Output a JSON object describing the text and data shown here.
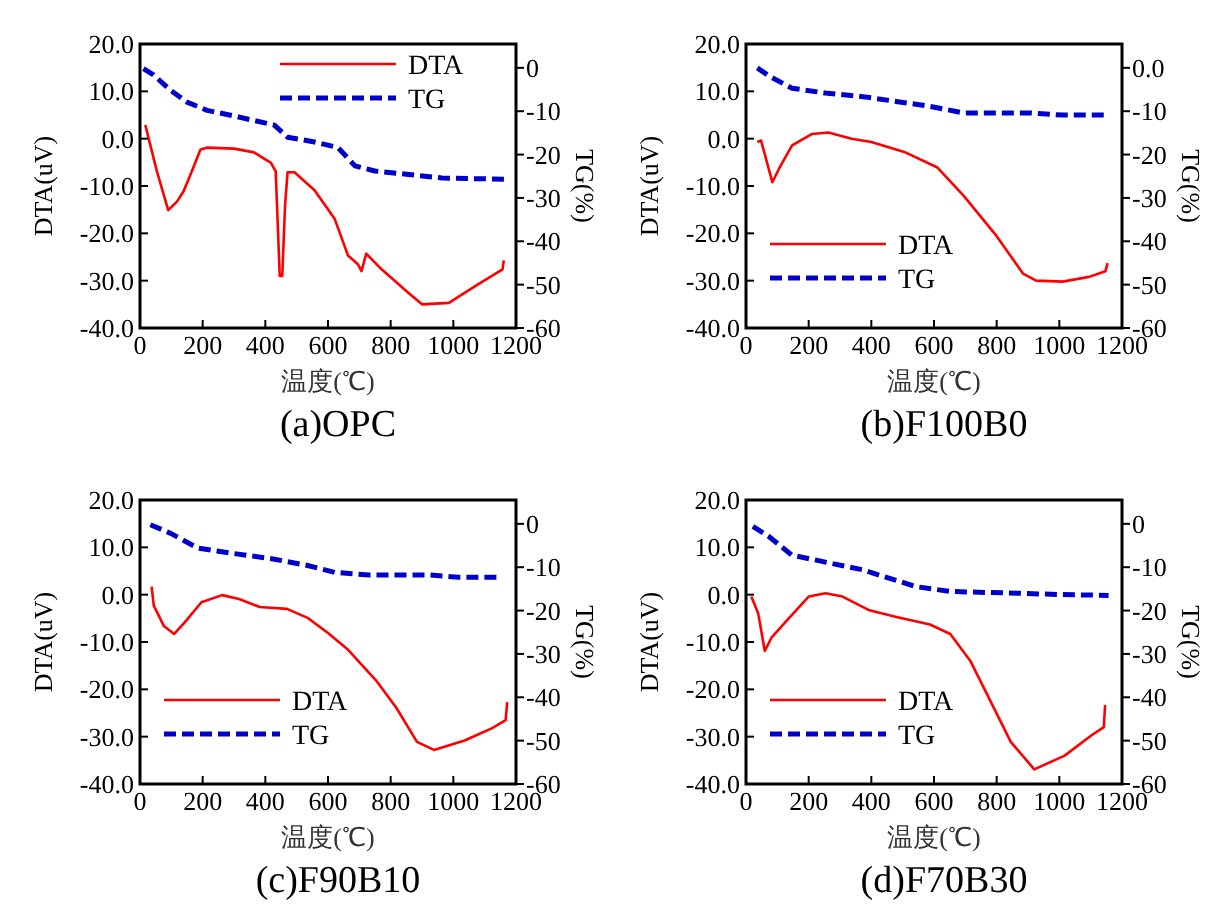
{
  "chart_data": [
    {
      "type": "line",
      "title": "(a)OPC",
      "xlabel": "温度(℃)",
      "ylabel": "DTA(uV)",
      "y2label": "TG(%)",
      "xlim": [
        0,
        1200
      ],
      "xticks": [
        0,
        200,
        400,
        600,
        800,
        1000,
        1200
      ],
      "ylim": [
        -40,
        20
      ],
      "yticks": [
        {
          "value": -40,
          "label": "-40.0"
        },
        {
          "value": -30,
          "label": "-30.0"
        },
        {
          "value": -20,
          "label": "-20.0"
        },
        {
          "value": -10,
          "label": "-10.0"
        },
        {
          "value": 0,
          "label": "0.0"
        },
        {
          "value": 10,
          "label": "10.0"
        },
        {
          "value": 20,
          "label": "20.0"
        }
      ],
      "y2lim": [
        -60,
        5.5
      ],
      "y2ticks": [
        -60,
        -50,
        -40,
        -30,
        -20,
        -10,
        0
      ],
      "legend": "top right",
      "grid": false,
      "series": [
        {
          "name": "DTA",
          "color": "#ff0000",
          "line_style": "solid",
          "x": [
            17,
            32,
            54,
            90,
            118,
            139,
            161,
            193,
            214,
            300,
            364,
            418,
            433,
            446,
            454,
            463,
            471,
            493,
            557,
            621,
            664,
            696,
            707,
            722,
            771,
            857,
            900,
            986,
            1071,
            1157,
            1161
          ],
          "values": [
            2.9,
            -1.1,
            -6.9,
            -15.1,
            -13.3,
            -11.1,
            -7.6,
            -2.3,
            -1.9,
            -2.1,
            -2.9,
            -5.1,
            -6.9,
            -29,
            -29,
            -14,
            -7.1,
            -7.1,
            -10.9,
            -16.9,
            -24.7,
            -26.6,
            -28,
            -24.3,
            -27.6,
            -32.6,
            -35,
            -34.7,
            -31.1,
            -27.6,
            -25.7
          ]
        },
        {
          "name": "TG",
          "color": "#0000cc",
          "line_style": "dashed",
          "axis": "y2",
          "x": [
            11,
            43,
            96,
            150,
            214,
            300,
            429,
            471,
            557,
            632,
            686,
            750,
            857,
            964,
            1168
          ],
          "values": [
            -0.2,
            -1.6,
            -5.1,
            -7.9,
            -9.8,
            -11.1,
            -13.2,
            -16,
            -17.1,
            -18.4,
            -22.6,
            -23.8,
            -24.6,
            -25.4,
            -25.7
          ]
        }
      ]
    },
    {
      "type": "line",
      "title": "(b)F100B0",
      "xlabel": "温度(℃)",
      "ylabel": "DTA(uV)",
      "y2label": "TG(%)",
      "xlim": [
        0,
        1200
      ],
      "xticks": [
        0,
        200,
        400,
        600,
        800,
        1000,
        1200
      ],
      "ylim": [
        -40,
        20
      ],
      "yticks": [
        {
          "value": -40,
          "label": "-40.0"
        },
        {
          "value": -30,
          "label": "-30.0"
        },
        {
          "value": -20,
          "label": "-20.0"
        },
        {
          "value": -10,
          "label": "-10.0"
        },
        {
          "value": 0,
          "label": "0.0"
        },
        {
          "value": 10,
          "label": "10.0"
        },
        {
          "value": 20,
          "label": "20.0"
        }
      ],
      "y2lim": [
        -60,
        5.5
      ],
      "y2ticks": [
        -60,
        -50,
        -40,
        -30,
        -20,
        -10,
        {
          "value": 0,
          "label": "0.0"
        }
      ],
      "legend": "bottom left",
      "grid": false,
      "series": [
        {
          "name": "DTA",
          "color": "#ff0000",
          "line_style": "solid",
          "x": [
            36,
            48,
            84,
            105,
            147,
            211,
            263,
            337,
            400,
            505,
            611,
            695,
            800,
            884,
            926,
            1011,
            1095,
            1147,
            1154
          ],
          "values": [
            -0.7,
            -0.4,
            -9.2,
            -6.4,
            -1.4,
            1.0,
            1.3,
            0,
            -0.7,
            -2.8,
            -6.1,
            -12.1,
            -20.6,
            -28.5,
            -30,
            -30.2,
            -29.2,
            -28,
            -26.3
          ]
        },
        {
          "name": "TG",
          "color": "#0000cc",
          "line_style": "dashed",
          "axis": "y2",
          "x": [
            36,
            74,
            147,
            253,
            379,
            484,
            589,
            695,
            905,
            1011,
            1147
          ],
          "values": [
            0,
            -1.9,
            -4.7,
            -5.8,
            -6.7,
            -7.8,
            -8.9,
            -10.4,
            -10.4,
            -10.9,
            -10.9
          ]
        }
      ]
    },
    {
      "type": "line",
      "title": "(c)F90B10",
      "xlabel": "温度(℃)",
      "ylabel": "DTA(uV)",
      "y2label": "TG(%)",
      "xlim": [
        0,
        1200
      ],
      "xticks": [
        0,
        200,
        400,
        600,
        800,
        1000,
        1200
      ],
      "ylim": [
        -40,
        20
      ],
      "yticks": [
        {
          "value": -40,
          "label": "-40.0"
        },
        {
          "value": -30,
          "label": "-30.0"
        },
        {
          "value": -20,
          "label": "-20.0"
        },
        {
          "value": -10,
          "label": "-10.0"
        },
        {
          "value": 0,
          "label": "0.0"
        },
        {
          "value": 10,
          "label": "10.0"
        },
        {
          "value": 20,
          "label": "20.0"
        }
      ],
      "y2lim": [
        -60,
        5.5
      ],
      "y2ticks": [
        -60,
        -50,
        -40,
        -30,
        -20,
        -10,
        0
      ],
      "legend": "bottom left",
      "grid": false,
      "series": [
        {
          "name": "DTA",
          "color": "#ff0000",
          "line_style": "solid",
          "x": [
            37,
            44,
            76,
            109,
            142,
            196,
            262,
            316,
            382,
            469,
            535,
            600,
            665,
            753,
            818,
            884,
            938,
            1036,
            1124,
            1167,
            1172
          ],
          "values": [
            1.7,
            -2.3,
            -6.6,
            -8.3,
            -5.9,
            -1.6,
            -0.1,
            -0.9,
            -2.6,
            -3,
            -4.9,
            -8.1,
            -11.7,
            -18.1,
            -23.9,
            -31.1,
            -32.8,
            -30.8,
            -28.2,
            -26.5,
            -22.7
          ]
        },
        {
          "name": "TG",
          "color": "#0000cc",
          "line_style": "dashed",
          "axis": "y2",
          "x": [
            33,
            98,
            185,
            295,
            425,
            535,
            622,
            731,
            927,
            1015,
            1145
          ],
          "values": [
            -0.2,
            -2.2,
            -5.6,
            -6.8,
            -8.1,
            -9.6,
            -11.2,
            -11.8,
            -11.8,
            -12.3,
            -12.3
          ]
        }
      ]
    },
    {
      "type": "line",
      "title": "(d)F70B30",
      "xlabel": "温度(℃)",
      "ylabel": "DTA(uV)",
      "y2label": "TG(%)",
      "xlim": [
        0,
        1200
      ],
      "xticks": [
        0,
        200,
        400,
        600,
        800,
        1000,
        1200
      ],
      "ylim": [
        -40,
        20
      ],
      "yticks": [
        {
          "value": -40,
          "label": "-40.0"
        },
        {
          "value": -30,
          "label": "-30.0"
        },
        {
          "value": -20,
          "label": "-20.0"
        },
        {
          "value": -10,
          "label": "-10.0"
        },
        {
          "value": 0,
          "label": "0.0"
        },
        {
          "value": 10,
          "label": "10.0"
        },
        {
          "value": 20,
          "label": "20.0"
        }
      ],
      "y2lim": [
        -60,
        5.5
      ],
      "y2ticks": [
        -60,
        -50,
        -40,
        -30,
        -20,
        -10,
        0
      ],
      "legend": "bottom left",
      "grid": false,
      "series": [
        {
          "name": "DTA",
          "color": "#ff0000",
          "line_style": "solid",
          "x": [
            17,
            39,
            60,
            82,
            135,
            200,
            254,
            308,
            394,
            480,
            587,
            652,
            716,
            781,
            845,
            920,
            1017,
            1103,
            1142,
            1146
          ],
          "values": [
            -0.4,
            -4,
            -11.9,
            -9,
            -5.1,
            -0.4,
            0.3,
            -0.4,
            -3.3,
            -4.7,
            -6.3,
            -8.3,
            -14,
            -22.6,
            -31.1,
            -36.9,
            -34,
            -29.7,
            -28,
            -23.3
          ]
        },
        {
          "name": "TG",
          "color": "#0000cc",
          "line_style": "dashed",
          "axis": "y2",
          "x": [
            22,
            71,
            146,
            265,
            372,
            437,
            544,
            652,
            867,
            996,
            1157
          ],
          "values": [
            -0.6,
            -2.8,
            -7.2,
            -9,
            -10.6,
            -12.1,
            -14.5,
            -15.6,
            -16,
            -16.3,
            -16.5
          ]
        }
      ]
    }
  ]
}
